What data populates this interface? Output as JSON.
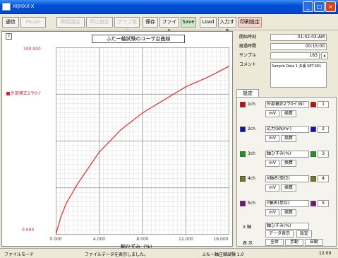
{
  "window": {
    "title": "XIJHXX-X"
  },
  "toolbar": {
    "items": [
      "通信",
      "Pause",
      "開始設定",
      "停止設定",
      "グラフ設定",
      "保存",
      "ファイル",
      "Save",
      "Load",
      "入力する",
      "印刷設定"
    ]
  },
  "graph": {
    "title": "ふたー軸試験のユーザ台曲線",
    "legend": "外部補正2ラ0イ",
    "ymax": "100.000",
    "ymin": "0.000",
    "xlabel": "軸ひずみ（%）",
    "xticks": [
      "0.000",
      "4.000",
      "8.000",
      "12.000",
      "16.000"
    ]
  },
  "info": {
    "start_label": "開始時刻",
    "start_value": "01:02:03:AM",
    "elapsed_label": "経過時間",
    "elapsed_value": "00:15:00",
    "samples_label": "サンプル",
    "samples_value": "183",
    "comment_label": "コメント",
    "comment_value": "Sample Data 1 多番 \nSET.001"
  },
  "settings": {
    "tab": "設定",
    "channels": [
      {
        "label": "1ch",
        "select": "外部補正2ラ0イ(N)",
        "color": "#e00000",
        "num": "1",
        "b1": "mV",
        "b2": "換算"
      },
      {
        "label": "2ch",
        "select": "応力(kN/m²)",
        "color": "#1010c0",
        "num": "2",
        "b1": "mV",
        "b2": "換算"
      },
      {
        "label": "3ch",
        "select": "軸ひずみ(%)",
        "color": "#10a010",
        "num": "3",
        "b1": "mV",
        "b2": "換算"
      },
      {
        "label": "4ch",
        "select": "X軸名(単位)",
        "color": "#7a7a10",
        "num": "4",
        "b1": "mV",
        "b2": "換算"
      },
      {
        "label": "5ch",
        "select": "Y軸名(単位)",
        "color": "#801080",
        "num": "5",
        "b1": "mV",
        "b2": "換算"
      }
    ],
    "xaxis_label": "X 軸",
    "xaxis_select": "軸ひずみ(%)",
    "xaxis_btn1": "データ表示",
    "xaxis_btn2": "設定",
    "scale_label": "表 示",
    "scale_btns": [
      "全体",
      "手動",
      "自動"
    ]
  },
  "status": {
    "left": "ファイルモード",
    "mid": "ファイルデータを表示しました。",
    "right": "ふたー軸圧縮試験 1.0",
    "time": "12:00"
  },
  "chart_data": {
    "type": "line",
    "title": "ふたー軸試験のユーザ台曲線",
    "xlabel": "軸ひずみ（%）",
    "ylabel": "",
    "xlim": [
      0,
      16
    ],
    "ylim": [
      0,
      100
    ],
    "series": [
      {
        "name": "外部補正2ラ0イ",
        "color": "#e03838",
        "x": [
          0,
          0.5,
          1,
          2,
          4,
          6,
          8,
          10,
          12,
          14,
          16
        ],
        "y": [
          0,
          10,
          17,
          27,
          44,
          56,
          65,
          72,
          79,
          84,
          90
        ]
      }
    ]
  }
}
